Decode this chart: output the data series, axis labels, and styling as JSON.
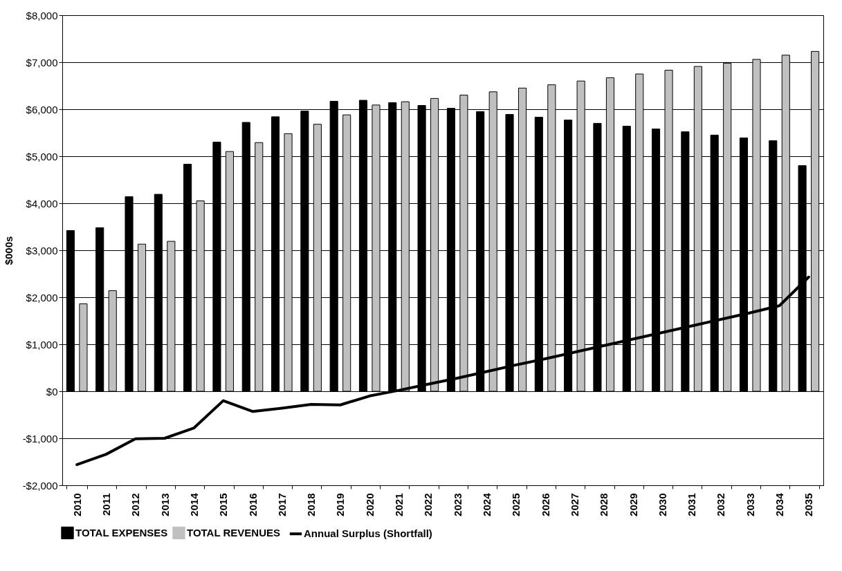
{
  "chart_data": {
    "type": "bar",
    "ylabel": "$000s",
    "categories": [
      "2010",
      "2011",
      "2012",
      "2013",
      "2014",
      "2015",
      "2016",
      "2017",
      "2018",
      "2019",
      "2020",
      "2021",
      "2022",
      "2023",
      "2024",
      "2025",
      "2026",
      "2027",
      "2028",
      "2029",
      "2030",
      "2031",
      "2032",
      "2033",
      "2034",
      "2035"
    ],
    "series": [
      {
        "name": "TOTAL EXPENSES",
        "color": "#000000",
        "values": [
          3420,
          3480,
          4140,
          4190,
          4830,
          5300,
          5720,
          5840,
          5960,
          6170,
          6190,
          6140,
          6080,
          6020,
          5950,
          5890,
          5830,
          5770,
          5700,
          5640,
          5580,
          5520,
          5450,
          5390,
          5330,
          4800
        ]
      },
      {
        "name": "TOTAL REVENUES",
        "color": "#c0c0c0",
        "values": [
          1860,
          2140,
          3130,
          3190,
          4050,
          5100,
          5290,
          5480,
          5680,
          5880,
          6090,
          6160,
          6230,
          6300,
          6370,
          6450,
          6520,
          6600,
          6670,
          6750,
          6830,
          6910,
          6980,
          7060,
          7150,
          7230
        ]
      },
      {
        "name": "Annual Surplus (Shortfall)",
        "type": "line",
        "color": "#000000",
        "values": [
          -1560,
          -1340,
          -1010,
          -1000,
          -780,
          -200,
          -430,
          -360,
          -280,
          -290,
          -100,
          20,
          150,
          280,
          420,
          560,
          690,
          830,
          970,
          1110,
          1250,
          1390,
          1530,
          1670,
          1820,
          2430
        ]
      }
    ],
    "ylim": [
      -2000,
      8000
    ],
    "yticks": [
      {
        "value": -2000,
        "label": "-$2,000"
      },
      {
        "value": -1000,
        "label": "-$1,000"
      },
      {
        "value": 0,
        "label": "$0"
      },
      {
        "value": 1000,
        "label": "$1,000"
      },
      {
        "value": 2000,
        "label": "$2,000"
      },
      {
        "value": 3000,
        "label": "$3,000"
      },
      {
        "value": 4000,
        "label": "$4,000"
      },
      {
        "value": 5000,
        "label": "$5,000"
      },
      {
        "value": 6000,
        "label": "$6,000"
      },
      {
        "value": 7000,
        "label": "$7,000"
      },
      {
        "value": 8000,
        "label": "$8,000"
      }
    ],
    "grid": "y",
    "legend": "bottom"
  }
}
